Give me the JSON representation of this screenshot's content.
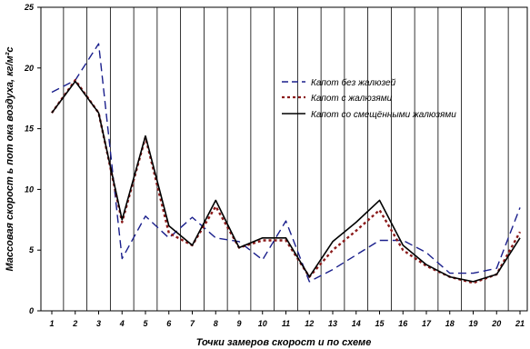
{
  "chart_data": {
    "type": "line",
    "title": "",
    "xlabel": "Точки замеров скорост и по схеме",
    "ylabel": "Массовая скорост ь пот ока воздуха, кг/м²с",
    "categories": [
      "1",
      "2",
      "3",
      "4",
      "5",
      "6",
      "7",
      "8",
      "9",
      "10",
      "11",
      "12",
      "13",
      "14",
      "15",
      "16",
      "17",
      "18",
      "19",
      "20",
      "21"
    ],
    "ylim": [
      0,
      25
    ],
    "yticks": [
      "0",
      "5",
      "10",
      "15",
      "20",
      "25"
    ],
    "grid": "vertical",
    "legend_position": "right-upper",
    "series": [
      {
        "name": "Капот   без жалюзей",
        "style": "dashed",
        "color": "#1a1f8c",
        "values": [
          18.0,
          19.0,
          22.0,
          4.3,
          7.8,
          6.0,
          7.7,
          6.0,
          5.7,
          4.2,
          7.4,
          2.4,
          3.4,
          4.6,
          5.8,
          5.8,
          4.8,
          3.1,
          3.1,
          3.5,
          8.5
        ]
      },
      {
        "name": "Капот   с жалюзями",
        "style": "dotted",
        "color": "#8b1a1a",
        "values": [
          16.3,
          19.0,
          16.3,
          7.3,
          14.3,
          6.4,
          5.4,
          8.6,
          5.2,
          5.8,
          5.8,
          2.8,
          5.0,
          6.6,
          8.3,
          5.0,
          3.7,
          2.8,
          2.3,
          3.0,
          6.5
        ]
      },
      {
        "name": "Капот   со смещёнными жалюзями",
        "style": "solid",
        "color": "#000000",
        "values": [
          16.3,
          18.9,
          16.3,
          7.5,
          14.4,
          7.0,
          5.4,
          9.1,
          5.2,
          6.0,
          6.0,
          2.8,
          5.7,
          7.3,
          9.1,
          5.4,
          3.8,
          2.8,
          2.4,
          3.0,
          6.0
        ]
      }
    ]
  }
}
